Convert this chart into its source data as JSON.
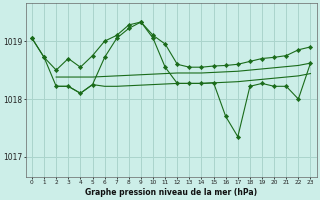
{
  "title": "Graphe pression niveau de la mer (hPa)",
  "background_color": "#cceee8",
  "grid_color": "#aad4cc",
  "line_color": "#1a6b1a",
  "x_ticks": [
    0,
    1,
    2,
    3,
    4,
    5,
    6,
    7,
    8,
    9,
    10,
    11,
    12,
    13,
    14,
    15,
    16,
    17,
    18,
    19,
    20,
    21,
    22,
    23
  ],
  "y_ticks": [
    1017,
    1018,
    1019
  ],
  "ylim": [
    1016.65,
    1019.65
  ],
  "series": [
    {
      "x": [
        0,
        1,
        2,
        3,
        4,
        5,
        6,
        7,
        8,
        9,
        10,
        11,
        12,
        13,
        14,
        15,
        16,
        17,
        18,
        19,
        20,
        21,
        22,
        23
      ],
      "y": [
        1019.05,
        1018.72,
        1018.5,
        1018.7,
        1018.55,
        1018.75,
        1019.0,
        1019.1,
        1019.28,
        1019.33,
        1019.1,
        1018.95,
        1018.6,
        1018.55,
        1018.55,
        1018.57,
        1018.58,
        1018.6,
        1018.65,
        1018.7,
        1018.72,
        1018.75,
        1018.85,
        1018.9
      ],
      "marker": "D",
      "markersize": 2.2
    },
    {
      "x": [
        2,
        3,
        4,
        5,
        6,
        7,
        8,
        9,
        10,
        11,
        12,
        13,
        14,
        15,
        16,
        17,
        18,
        19,
        20,
        21,
        22,
        23
      ],
      "y": [
        1018.38,
        1018.38,
        1018.38,
        1018.38,
        1018.39,
        1018.4,
        1018.41,
        1018.42,
        1018.43,
        1018.44,
        1018.45,
        1018.45,
        1018.45,
        1018.46,
        1018.47,
        1018.48,
        1018.5,
        1018.52,
        1018.54,
        1018.56,
        1018.58,
        1018.62
      ],
      "marker": null,
      "markersize": 0
    },
    {
      "x": [
        2,
        3,
        4,
        5,
        6,
        7,
        8,
        9,
        10,
        11,
        12,
        13,
        14,
        15,
        16,
        17,
        18,
        19,
        20,
        21,
        22,
        23
      ],
      "y": [
        1018.22,
        1018.22,
        1018.1,
        1018.25,
        1018.22,
        1018.22,
        1018.23,
        1018.24,
        1018.25,
        1018.26,
        1018.27,
        1018.27,
        1018.27,
        1018.28,
        1018.29,
        1018.3,
        1018.32,
        1018.34,
        1018.36,
        1018.38,
        1018.4,
        1018.44
      ],
      "marker": null,
      "markersize": 0
    },
    {
      "x": [
        0,
        1,
        2,
        3,
        4,
        5,
        6,
        7,
        8,
        9,
        10,
        11,
        12,
        13,
        14,
        15,
        16,
        17,
        18,
        19,
        20,
        21,
        22,
        23
      ],
      "y": [
        1019.05,
        1018.72,
        1018.22,
        1018.22,
        1018.1,
        1018.25,
        1018.72,
        1019.05,
        1019.22,
        1019.33,
        1019.05,
        1018.55,
        1018.27,
        1018.27,
        1018.27,
        1018.28,
        1017.7,
        1017.35,
        1018.22,
        1018.27,
        1018.22,
        1018.22,
        1018.0,
        1018.62
      ],
      "marker": "D",
      "markersize": 2.2
    }
  ]
}
